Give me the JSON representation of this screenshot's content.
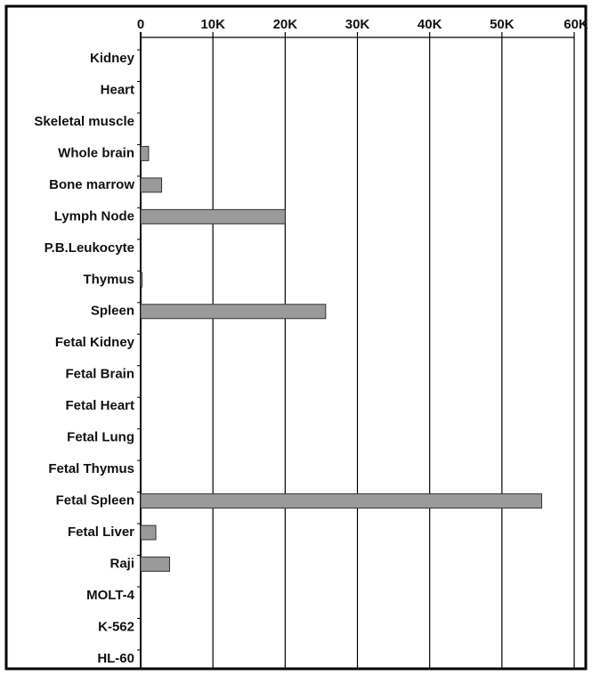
{
  "chart_data": {
    "type": "bar",
    "orientation": "horizontal",
    "categories": [
      "Kidney",
      "Heart",
      "Skeletal muscle",
      "Whole brain",
      "Bone marrow",
      "Lymph Node",
      "P.B.Leukocyte",
      "Thymus",
      "Spleen",
      "Fetal Kidney",
      "Fetal Brain",
      "Fetal Heart",
      "Fetal Lung",
      "Fetal Thymus",
      "Fetal Spleen",
      "Fetal Liver",
      "Raji",
      "MOLT-4",
      "K-562",
      "HL-60"
    ],
    "values": [
      0,
      0,
      0,
      1100,
      2900,
      20000,
      0,
      200,
      25600,
      0,
      0,
      0,
      0,
      0,
      55500,
      2100,
      4000,
      0,
      0,
      0
    ],
    "color": "#9a9a9a",
    "xlim": [
      0,
      60000
    ],
    "xticks": [
      0,
      {
        "value": 10000,
        "label": "10K"
      },
      {
        "value": 20000,
        "label": "20K"
      },
      {
        "value": 30000,
        "label": "30K"
      },
      {
        "value": 40000,
        "label": "40K"
      },
      {
        "value": 50000,
        "label": "50K"
      },
      {
        "value": 60000,
        "label": "60K"
      }
    ],
    "grid": true
  }
}
